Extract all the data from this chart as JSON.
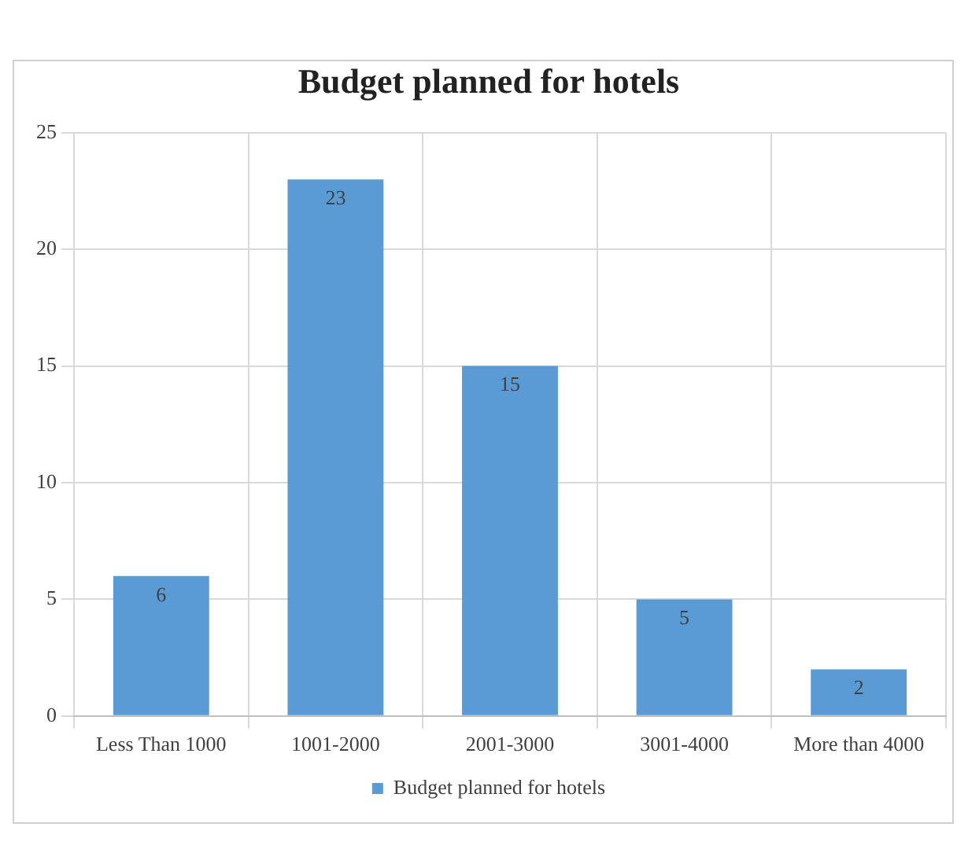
{
  "chart_data": {
    "type": "bar",
    "title": "Budget planned for hotels",
    "categories": [
      "Less Than 1000",
      "1001-2000",
      "2001-3000",
      "3001-4000",
      "More than 4000"
    ],
    "series": [
      {
        "name": "Budget planned for hotels",
        "color": "#5b9bd5",
        "values": [
          6,
          23,
          15,
          5,
          2
        ]
      }
    ],
    "ylim": [
      0,
      25
    ],
    "yticks": [
      0,
      5,
      10,
      15,
      20,
      25
    ],
    "grid": true,
    "legend": "bottom",
    "data_labels": true
  }
}
